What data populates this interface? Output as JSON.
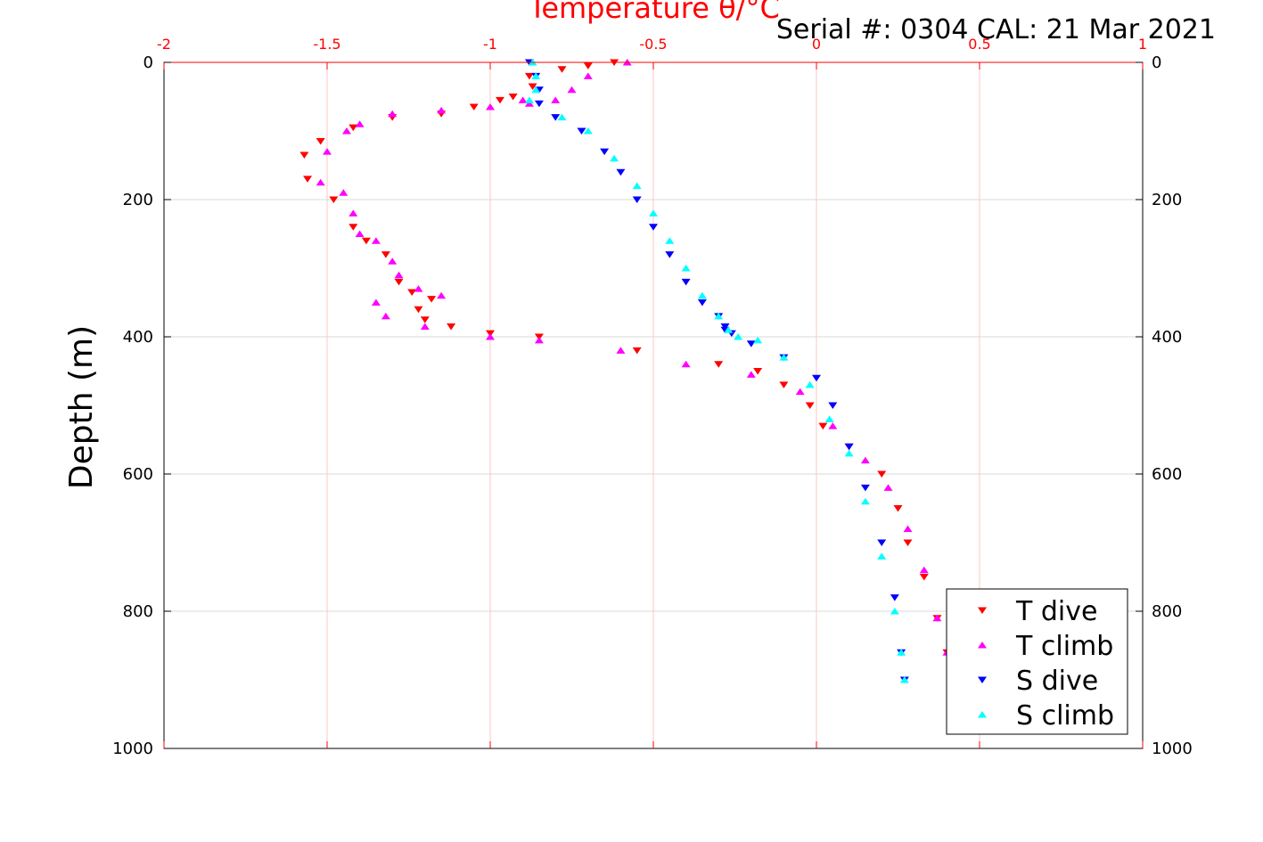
{
  "chart_data": {
    "type": "scatter",
    "title": "Temperature θ/°C",
    "subtitle": "Serial #: 0304  CAL: 21 Mar 2021",
    "xlabel": "Temperature θ/°C",
    "ylabel": "Depth (m)",
    "xlim": [
      -2,
      1
    ],
    "ylim": [
      0,
      1000
    ],
    "y_reversed": true,
    "grid": true,
    "x_ticks": [
      "-2",
      "-1.5",
      "-1",
      "-0.5",
      "0",
      "0.5",
      "1"
    ],
    "y_ticks": [
      "0",
      "200",
      "400",
      "600",
      "800",
      "1000"
    ],
    "legend_position": "bottom-right",
    "colors": {
      "axis_top": "#ff0000",
      "axis_other": "#000000"
    },
    "series": [
      {
        "name": "T dive",
        "marker": "triangle-down",
        "color": "#ff0000",
        "x": [
          -0.62,
          -0.7,
          -0.78,
          -0.88,
          -0.87,
          -0.93,
          -0.97,
          -1.05,
          -1.15,
          -1.3,
          -1.42,
          -1.52,
          -1.57,
          -1.56,
          -1.48,
          -1.42,
          -1.38,
          -1.32,
          -1.28,
          -1.24,
          -1.18,
          -1.22,
          -1.2,
          -1.12,
          -1.0,
          -0.85,
          -0.55,
          -0.3,
          -0.18,
          -0.1,
          -0.02,
          0.02,
          0.1,
          0.2,
          0.25,
          0.28,
          0.33,
          0.37,
          0.4
        ],
        "y": [
          0,
          5,
          10,
          20,
          35,
          50,
          55,
          65,
          75,
          80,
          95,
          115,
          135,
          170,
          200,
          240,
          260,
          280,
          320,
          335,
          345,
          360,
          375,
          385,
          395,
          400,
          420,
          440,
          450,
          470,
          500,
          530,
          560,
          600,
          650,
          700,
          750,
          810,
          860
        ]
      },
      {
        "name": "T climb",
        "marker": "triangle-up",
        "color": "#ff00ff",
        "x": [
          -0.58,
          -0.7,
          -0.75,
          -0.8,
          -0.88,
          -0.9,
          -1.0,
          -1.15,
          -1.3,
          -1.4,
          -1.44,
          -1.5,
          -1.52,
          -1.45,
          -1.42,
          -1.4,
          -1.35,
          -1.3,
          -1.28,
          -1.22,
          -1.15,
          -1.35,
          -1.32,
          -1.2,
          -1.0,
          -0.85,
          -0.6,
          -0.4,
          -0.2,
          -0.05,
          0.05,
          0.15,
          0.22,
          0.28,
          0.33,
          0.37,
          0.4
        ],
        "y": [
          0,
          20,
          40,
          55,
          60,
          55,
          65,
          70,
          75,
          90,
          100,
          130,
          175,
          190,
          220,
          250,
          260,
          290,
          310,
          330,
          340,
          350,
          370,
          385,
          400,
          405,
          420,
          440,
          455,
          480,
          530,
          580,
          620,
          680,
          740,
          810,
          860
        ]
      },
      {
        "name": "S dive",
        "marker": "triangle-down",
        "color": "#0000ff",
        "x": [
          -0.88,
          -0.86,
          -0.85,
          -0.85,
          -0.8,
          -0.72,
          -0.65,
          -0.6,
          -0.55,
          -0.5,
          -0.45,
          -0.4,
          -0.35,
          -0.3,
          -0.28,
          -0.26,
          -0.28,
          -0.2,
          -0.1,
          0.0,
          0.05,
          0.1,
          0.15,
          0.2,
          0.24,
          0.26,
          0.27
        ],
        "y": [
          0,
          20,
          40,
          60,
          80,
          100,
          130,
          160,
          200,
          240,
          280,
          320,
          350,
          370,
          385,
          395,
          390,
          410,
          430,
          460,
          500,
          560,
          620,
          700,
          780,
          860,
          900
        ]
      },
      {
        "name": "S climb",
        "marker": "triangle-up",
        "color": "#00ffff",
        "x": [
          -0.87,
          -0.86,
          -0.86,
          -0.88,
          -0.78,
          -0.7,
          -0.62,
          -0.55,
          -0.5,
          -0.45,
          -0.4,
          -0.35,
          -0.3,
          -0.27,
          -0.24,
          -0.18,
          -0.1,
          -0.02,
          0.04,
          0.1,
          0.15,
          0.2,
          0.24,
          0.26,
          0.27
        ],
        "y": [
          0,
          20,
          40,
          55,
          80,
          100,
          140,
          180,
          220,
          260,
          300,
          340,
          370,
          390,
          400,
          405,
          430,
          470,
          520,
          570,
          640,
          720,
          800,
          860,
          900
        ]
      }
    ]
  }
}
